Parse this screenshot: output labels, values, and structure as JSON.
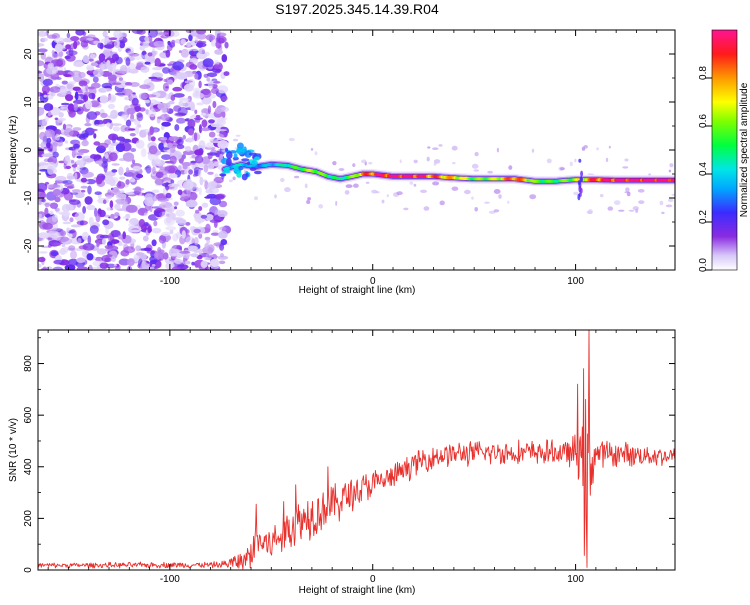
{
  "title": "S197.2025.345.14.39.R04",
  "chart_data": [
    {
      "type": "heatmap",
      "title": "",
      "xlabel": "Height of straight line (km)",
      "ylabel": "Frequency (Hz)",
      "xlim": [
        -165,
        149
      ],
      "ylim": [
        -25,
        25
      ],
      "xticks": [
        -100,
        0,
        100
      ],
      "yticks": [
        -20,
        -10,
        0,
        10,
        20
      ],
      "noise_region_x": [
        -165,
        -72
      ],
      "ridge": {
        "x": [
          -73,
          -65,
          -58,
          -50,
          -42,
          -35,
          -28,
          -22,
          -16,
          -10,
          -5,
          0,
          10,
          20,
          30,
          40,
          50,
          60,
          70,
          80,
          90,
          100,
          110,
          120,
          130,
          140,
          149
        ],
        "freq": [
          -4,
          -3,
          -3.5,
          -3,
          -3.2,
          -4,
          -4.5,
          -5.5,
          -6,
          -5.5,
          -5,
          -5,
          -5.5,
          -5.5,
          -5.5,
          -5.8,
          -6,
          -6,
          -6,
          -6.5,
          -6.5,
          -6.2,
          -6.2,
          -6.3,
          -6.3,
          -6.3,
          -6.3
        ],
        "amplitude": [
          0.35,
          0.4,
          0.3,
          0.35,
          0.45,
          0.55,
          0.6,
          0.5,
          0.45,
          0.55,
          0.75,
          0.85,
          0.95,
          0.9,
          0.8,
          0.7,
          0.55,
          0.6,
          0.85,
          0.55,
          0.5,
          0.6,
          0.85,
          0.9,
          0.95,
          0.95,
          0.95
        ]
      },
      "colorbar": {
        "label": "Normalized spectral amplitude",
        "range": [
          0.0,
          1.0
        ],
        "ticks": [
          0.0,
          0.2,
          0.4,
          0.6,
          0.8
        ],
        "tick_labels": [
          "0.0",
          "0.2",
          "0.4",
          "0.6",
          "0.8"
        ]
      }
    },
    {
      "type": "line",
      "title": "",
      "xlabel": "Height of straight line (km)",
      "ylabel": "SNR (10 * v/v)",
      "xlim": [
        -165,
        149
      ],
      "ylim": [
        0,
        930
      ],
      "xticks": [
        -100,
        0,
        100
      ],
      "yticks": [
        0,
        200,
        400,
        600,
        800
      ],
      "color": "#e8302c",
      "envelope": {
        "x": [
          -165,
          -75,
          -62,
          -57,
          -50,
          -40,
          -30,
          -20,
          -10,
          0,
          10,
          20,
          30,
          40,
          60,
          80,
          95,
          100,
          103,
          105,
          106,
          110,
          120,
          149
        ],
        "mean": [
          18,
          20,
          40,
          110,
          100,
          170,
          220,
          250,
          300,
          330,
          360,
          410,
          440,
          450,
          455,
          455,
          455,
          450,
          420,
          300,
          420,
          450,
          450,
          440
        ],
        "spread": [
          8,
          10,
          40,
          80,
          60,
          80,
          80,
          70,
          60,
          50,
          40,
          40,
          40,
          40,
          40,
          40,
          40,
          60,
          150,
          300,
          200,
          50,
          40,
          30
        ]
      },
      "peaks": [
        {
          "x": -57.5,
          "y": 255
        },
        {
          "x": -44,
          "y": 265
        },
        {
          "x": -38,
          "y": 330
        },
        {
          "x": -22,
          "y": 400
        },
        {
          "x": 101,
          "y": 720
        },
        {
          "x": 104,
          "y": 780
        },
        {
          "x": 106.5,
          "y": 935
        },
        {
          "x": 105.5,
          "y": 10
        }
      ]
    }
  ]
}
